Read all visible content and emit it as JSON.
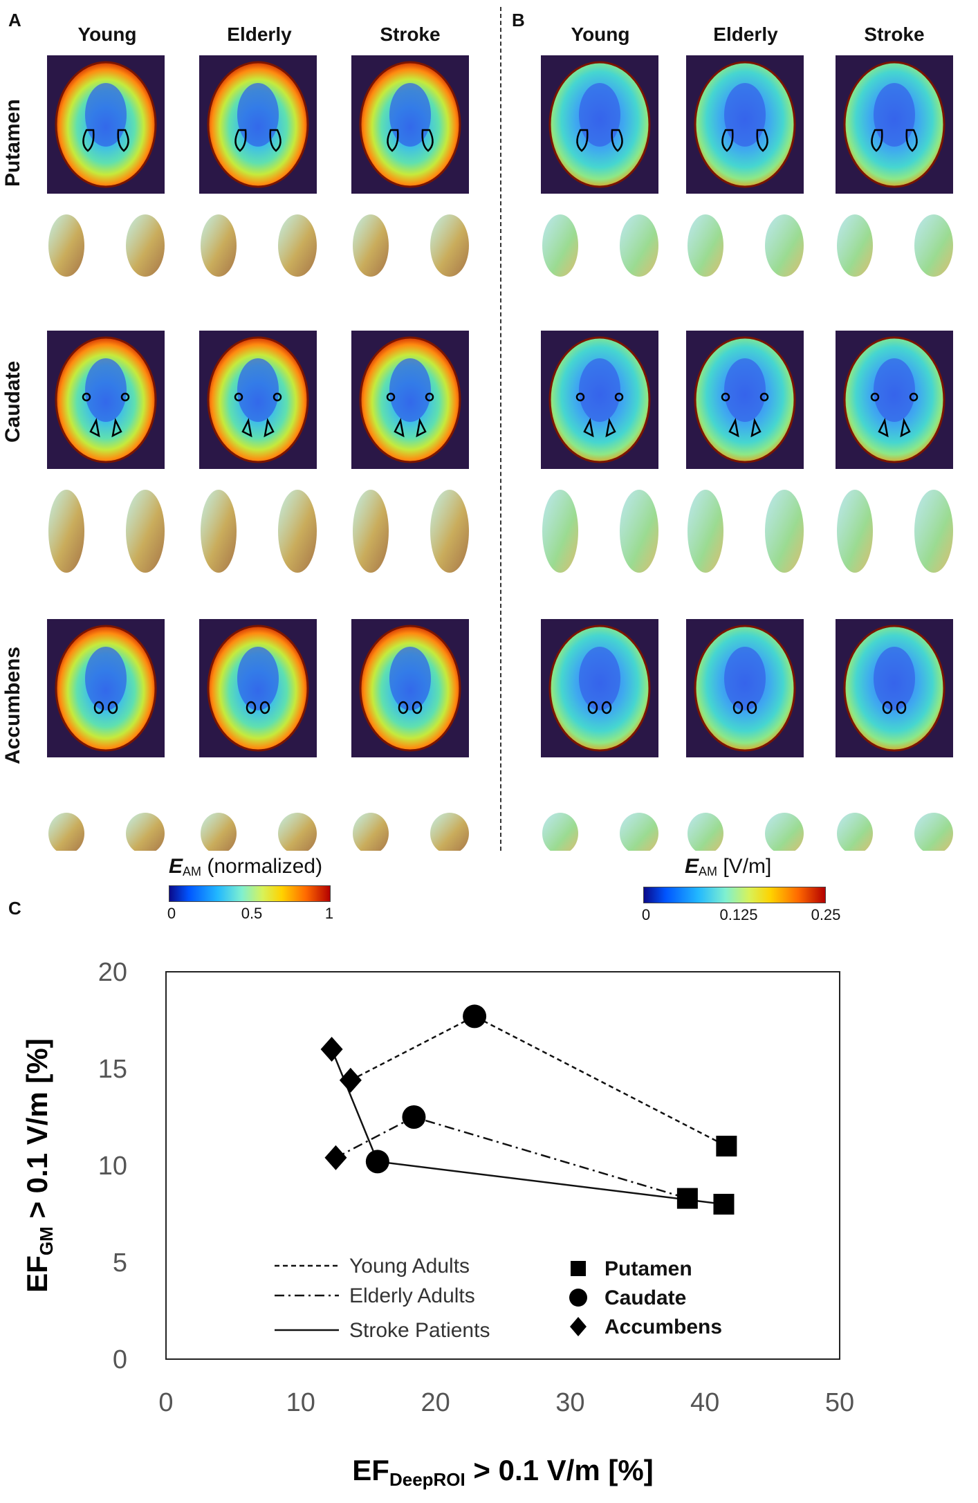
{
  "panels": {
    "a": "A",
    "b": "B",
    "c": "C"
  },
  "columns": {
    "a": [
      "Young",
      "Elderly",
      "Stroke"
    ],
    "b": [
      "Young",
      "Elderly",
      "Stroke"
    ]
  },
  "rows": [
    "Putamen",
    "Caudate",
    "Accumbens"
  ],
  "colorbars": {
    "a": {
      "title_sym": "E",
      "title_sub": "AM",
      "title_rest": " (normalized)",
      "ticks": [
        "0",
        "0.5",
        "1"
      ]
    },
    "b": {
      "title_sym": "E",
      "title_sub": "AM",
      "title_rest": " [V/m]",
      "ticks": [
        "0",
        "0.125",
        "0.25"
      ]
    }
  },
  "colors": {
    "dark_bg": "#2a1747",
    "ink": "#111111"
  },
  "chart_data": {
    "type": "scatter",
    "xlabel_main": "EF",
    "xlabel_sub": "DeepROI",
    "xlabel_rest": " > 0.1 V/m [%]",
    "ylabel_main": "EF",
    "ylabel_sub": "GM",
    "ylabel_rest": " > 0.1 V/m [%]",
    "xlim": [
      0,
      50
    ],
    "ylim": [
      0,
      20
    ],
    "xticks": [
      "0",
      "10",
      "20",
      "30",
      "40",
      "50"
    ],
    "yticks": [
      "0",
      "5",
      "10",
      "15",
      "20"
    ],
    "series": [
      {
        "name": "Young Adults",
        "dash": "dashed",
        "points": [
          {
            "roi": "Accumbens",
            "x": 13.7,
            "y": 14.4
          },
          {
            "roi": "Caudate",
            "x": 22.9,
            "y": 17.7
          },
          {
            "roi": "Putamen",
            "x": 41.6,
            "y": 11.0
          }
        ]
      },
      {
        "name": "Elderly Adults",
        "dash": "dashdot",
        "points": [
          {
            "roi": "Accumbens",
            "x": 12.6,
            "y": 10.4
          },
          {
            "roi": "Caudate",
            "x": 18.4,
            "y": 12.5
          },
          {
            "roi": "Putamen",
            "x": 38.7,
            "y": 8.3
          }
        ]
      },
      {
        "name": "Stroke Patients",
        "dash": "solid",
        "points": [
          {
            "roi": "Accumbens",
            "x": 12.3,
            "y": 16.0
          },
          {
            "roi": "Caudate",
            "x": 15.7,
            "y": 10.2
          },
          {
            "roi": "Putamen",
            "x": 41.4,
            "y": 8.0
          }
        ]
      }
    ],
    "markers": [
      {
        "roi": "Putamen",
        "shape": "square"
      },
      {
        "roi": "Caudate",
        "shape": "circle"
      },
      {
        "roi": "Accumbens",
        "shape": "diamond"
      }
    ]
  }
}
